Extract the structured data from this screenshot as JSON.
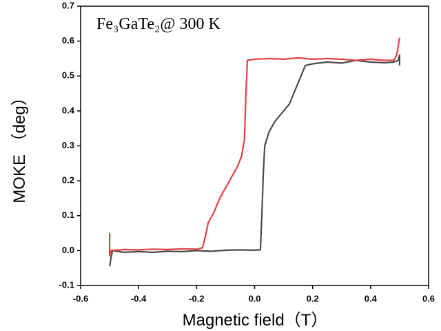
{
  "chart_data": {
    "type": "line",
    "annotation": "Fe₃GaTe₂@ 300 K",
    "x_label": "Magnetic field（T）",
    "y_label": "MOKE （deg）",
    "xlim": [
      -0.6,
      0.6
    ],
    "xticks": [
      -0.6,
      -0.4,
      -0.2,
      {
        "value": 0,
        "label": "0.0"
      },
      0.2,
      0.4,
      0.6
    ],
    "ylim": [
      -0.1,
      0.7
    ],
    "yticks": [
      -0.1,
      {
        "value": 0,
        "label": "0.0"
      },
      0.1,
      0.2,
      0.3,
      0.4,
      0.5,
      0.6,
      0.7
    ],
    "series": [
      {
        "color": "#4a4a4a",
        "x": [
          -0.5,
          -0.495,
          -0.49,
          -0.45,
          -0.4,
          -0.35,
          -0.3,
          -0.25,
          -0.2,
          -0.15,
          -0.1,
          -0.05,
          0,
          0.02,
          0.025,
          0.03,
          0.035,
          0.05,
          0.07,
          0.09,
          0.12,
          0.14,
          0.16,
          0.175,
          0.2,
          0.25,
          0.3,
          0.35,
          0.4,
          0.45,
          0.48,
          0.495,
          0.5,
          0.5
        ],
        "values": [
          -0.045,
          -0.02,
          0.0,
          -0.005,
          -0.003,
          -0.005,
          -0.002,
          -0.003,
          0.0,
          -0.002,
          0.001,
          0.002,
          0.001,
          0.002,
          0.1,
          0.22,
          0.3,
          0.34,
          0.37,
          0.39,
          0.42,
          0.46,
          0.5,
          0.53,
          0.535,
          0.54,
          0.537,
          0.545,
          0.54,
          0.538,
          0.54,
          0.545,
          0.56,
          0.53
        ]
      },
      {
        "color": "#e04040",
        "x": [
          -0.5,
          -0.5,
          -0.495,
          -0.45,
          -0.4,
          -0.35,
          -0.3,
          -0.25,
          -0.2,
          -0.18,
          -0.17,
          -0.16,
          -0.14,
          -0.12,
          -0.1,
          -0.08,
          -0.06,
          -0.045,
          -0.035,
          -0.03,
          -0.025,
          0,
          0.05,
          0.1,
          0.15,
          0.2,
          0.25,
          0.3,
          0.35,
          0.4,
          0.45,
          0.48,
          0.49,
          0.5
        ],
        "values": [
          0.05,
          -0.015,
          0.0,
          0.003,
          0.002,
          0.004,
          0.003,
          0.005,
          0.004,
          0.008,
          0.04,
          0.08,
          0.11,
          0.15,
          0.18,
          0.21,
          0.24,
          0.27,
          0.32,
          0.45,
          0.545,
          0.548,
          0.55,
          0.548,
          0.552,
          0.548,
          0.55,
          0.548,
          0.545,
          0.548,
          0.545,
          0.545,
          0.56,
          0.61
        ]
      }
    ]
  }
}
